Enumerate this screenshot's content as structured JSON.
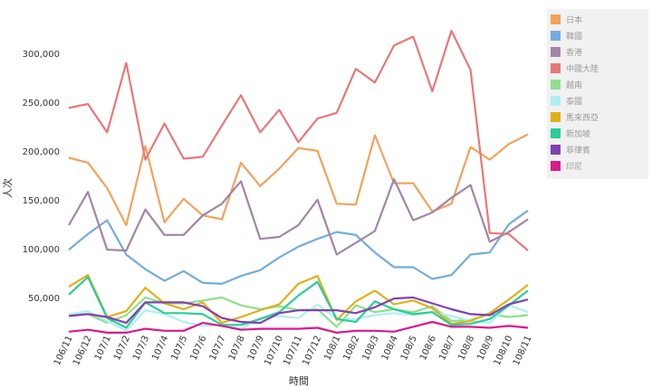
{
  "chart_data": {
    "type": "line",
    "title": "",
    "xlabel": "時間",
    "ylabel": "人次",
    "ylim": [
      13000,
      335000
    ],
    "yticks": [
      50000,
      100000,
      150000,
      200000,
      250000,
      300000
    ],
    "ytick_labels": [
      "50,000",
      "100,000",
      "150,000",
      "200,000",
      "250,000",
      "300,000"
    ],
    "grid": false,
    "legend_position": "right",
    "categories": [
      "106/11",
      "106/12",
      "107/1",
      "107/2",
      "107/3",
      "107/4",
      "107/5",
      "107/6",
      "107/7",
      "107/8",
      "107/9",
      "107/10",
      "107/11",
      "107/12",
      "108/1",
      "108/2",
      "108/3",
      "108/4",
      "108/5",
      "108/6",
      "108/7",
      "108/8",
      "108/9",
      "108/10",
      "108/11"
    ],
    "series": [
      {
        "name": "日本",
        "color": "#f0a35e",
        "values": [
          193000,
          188000,
          162000,
          124000,
          205000,
          127000,
          151000,
          134000,
          130000,
          188000,
          164000,
          182000,
          203000,
          200000,
          146000,
          145000,
          216000,
          167000,
          167000,
          138000,
          146000,
          204000,
          191000,
          207000,
          217000
        ]
      },
      {
        "name": "韓國",
        "color": "#75acdb",
        "values": [
          99000,
          115000,
          129000,
          94000,
          79000,
          67000,
          77000,
          65000,
          64000,
          72000,
          78000,
          91000,
          102000,
          110000,
          117000,
          114000,
          96000,
          81000,
          81000,
          69000,
          73000,
          94000,
          96000,
          125000,
          139000
        ]
      },
      {
        "name": "香港",
        "color": "#a285a5",
        "values": [
          124000,
          158000,
          99000,
          98000,
          140000,
          114000,
          114000,
          134000,
          146000,
          169000,
          110000,
          112000,
          124000,
          150000,
          94000,
          106000,
          118000,
          171000,
          129000,
          137000,
          152000,
          165000,
          107000,
          117000,
          130000
        ]
      },
      {
        "name": "中國大陸",
        "color": "#e87878",
        "values": [
          244000,
          248000,
          219000,
          290000,
          191000,
          228000,
          192000,
          194000,
          226000,
          257000,
          219000,
          242000,
          209000,
          233000,
          239000,
          284000,
          270000,
          308000,
          317000,
          261000,
          323000,
          283000,
          116000,
          115000,
          98000
        ]
      },
      {
        "name": "越南",
        "color": "#8fe08c",
        "values": [
          32000,
          33000,
          24000,
          32000,
          50000,
          44000,
          44000,
          47000,
          50000,
          42000,
          38000,
          41000,
          37000,
          38000,
          20000,
          42000,
          35000,
          38000,
          35000,
          41000,
          26000,
          27000,
          33000,
          30000,
          32000
        ]
      },
      {
        "name": "泰國",
        "color": "#b2eef0",
        "values": [
          33000,
          36000,
          26000,
          16000,
          37000,
          33000,
          25000,
          21000,
          22000,
          18000,
          29000,
          31000,
          29000,
          43000,
          28000,
          28000,
          32000,
          34000,
          32000,
          35000,
          31000,
          26000,
          24000,
          42000,
          35000
        ]
      },
      {
        "name": "馬來西亞",
        "color": "#e0b019",
        "values": [
          61000,
          73000,
          30000,
          36000,
          60000,
          44000,
          38000,
          45000,
          24000,
          30000,
          37000,
          43000,
          64000,
          72000,
          27000,
          46000,
          57000,
          43000,
          47000,
          39000,
          23000,
          26000,
          34000,
          48000,
          63000
        ]
      },
      {
        "name": "新加坡",
        "color": "#2ccc9a",
        "values": [
          53000,
          71000,
          29000,
          19000,
          45000,
          34000,
          34000,
          33000,
          22000,
          22000,
          28000,
          35000,
          52000,
          66000,
          28000,
          25000,
          46000,
          38000,
          33000,
          35000,
          22000,
          23000,
          28000,
          42000,
          57000
        ]
      },
      {
        "name": "菲律賓",
        "color": "#8440b0",
        "values": [
          31000,
          33000,
          30000,
          24000,
          45000,
          45000,
          45000,
          41000,
          29000,
          25000,
          24000,
          34000,
          37000,
          37000,
          37000,
          34000,
          40000,
          49000,
          50000,
          44000,
          38000,
          33000,
          32000,
          43000,
          48000
        ]
      },
      {
        "name": "印尼",
        "color": "#d91a8a",
        "values": [
          15000,
          17000,
          14000,
          14000,
          18000,
          16000,
          16000,
          24000,
          21000,
          17000,
          18000,
          18000,
          18000,
          19000,
          14000,
          16000,
          16000,
          15000,
          20000,
          25000,
          20000,
          20000,
          19000,
          21000,
          19000
        ]
      }
    ]
  }
}
